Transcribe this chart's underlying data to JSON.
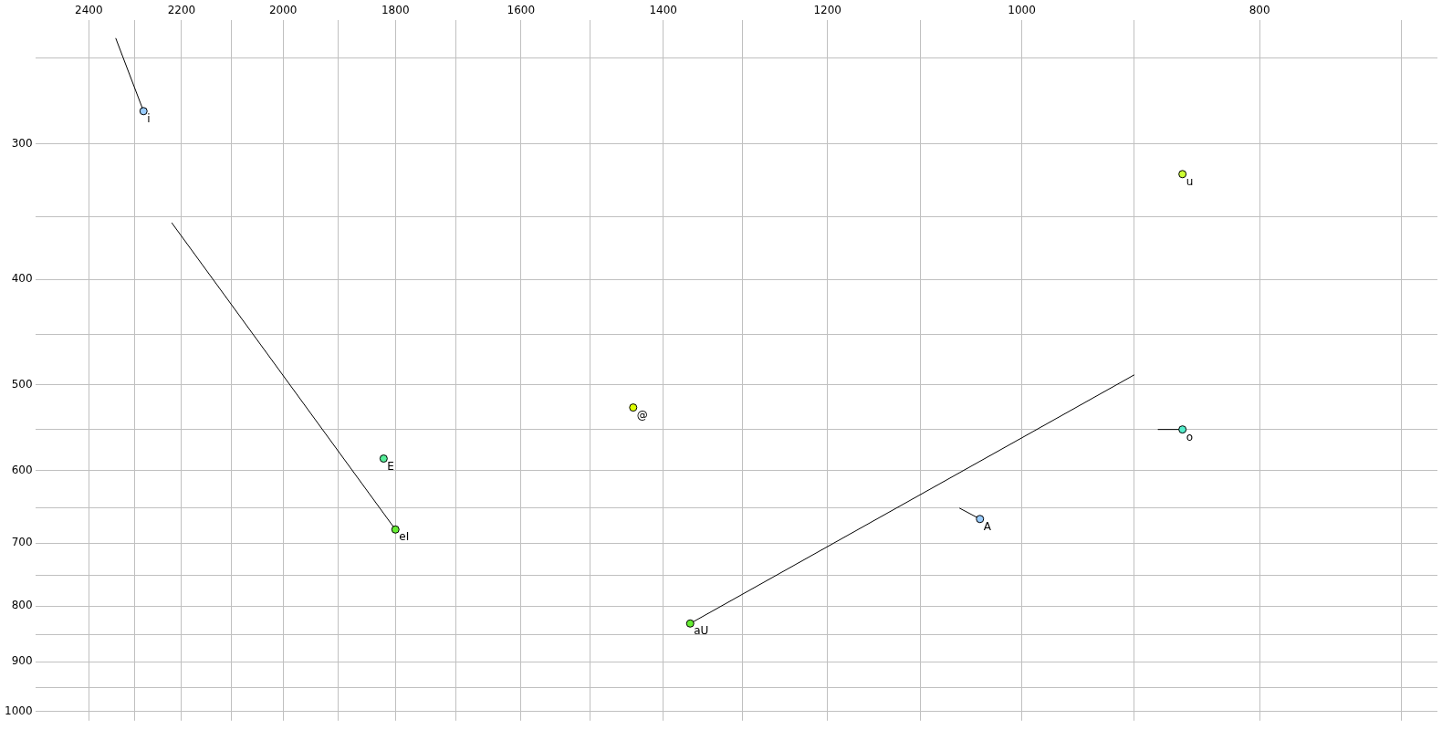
{
  "chart_data": {
    "type": "scatter",
    "log": "xy",
    "grid": true,
    "marker": "circle",
    "xlim": [
      2524,
      677
    ],
    "ylim": [
      1020,
      231
    ],
    "xticks": [
      2400,
      {
        "value": 2300,
        "label": null
      },
      2200,
      {
        "value": 2100,
        "label": null
      },
      2000,
      {
        "value": 1900,
        "label": null
      },
      1800,
      {
        "value": 1700,
        "label": null
      },
      1600,
      {
        "value": 1500,
        "label": null
      },
      1400,
      {
        "value": 1300,
        "label": null
      },
      1200,
      {
        "value": 1100,
        "label": null
      },
      1000,
      {
        "value": 900,
        "label": null
      },
      800,
      {
        "value": 700,
        "label": null
      }
    ],
    "yticks": [
      {
        "value": 250,
        "label": null
      },
      300,
      {
        "value": 350,
        "label": null
      },
      400,
      {
        "value": 450,
        "label": null
      },
      500,
      {
        "value": 550,
        "label": null
      },
      600,
      {
        "value": 650,
        "label": null
      },
      700,
      {
        "value": 750,
        "label": null
      },
      800,
      {
        "value": 850,
        "label": null
      },
      900,
      {
        "value": 950,
        "label": null
      },
      1000
    ],
    "series": [
      {
        "x": [
          2280,
          860,
          1440,
          1820,
          1800,
          860,
          1040,
          1365
        ],
        "values": [
          280,
          320,
          525,
          585,
          680,
          550,
          665,
          830
        ],
        "colors": [
          "#99ccff",
          "#ccff33",
          "#ddff00",
          "#55ee99",
          "#66ee33",
          "#55eecc",
          "#99ccff",
          "#66ee33"
        ]
      },
      {
        "type": "line",
        "marker": "none",
        "color": "#000000",
        "x": [
          2280,
          2340
        ],
        "values": [
          280,
          240
        ]
      },
      {
        "type": "line",
        "marker": "none",
        "color": "#000000",
        "x": [
          1800,
          2220
        ],
        "values": [
          680,
          355
        ]
      },
      {
        "type": "line",
        "marker": "none",
        "color": "#000000",
        "x": [
          1365,
          900
        ],
        "values": [
          830,
          490
        ]
      },
      {
        "type": "line",
        "marker": "none",
        "color": "#000000",
        "x": [
          880,
          860
        ],
        "values": [
          550,
          550
        ]
      },
      {
        "type": "line",
        "marker": "none",
        "color": "#000000",
        "x": [
          1060,
          1040
        ],
        "values": [
          650,
          665
        ]
      }
    ],
    "annotations": [
      {
        "text": "i",
        "x": 2280,
        "y": 280
      },
      {
        "text": "u",
        "x": 860,
        "y": 320
      },
      {
        "text": "@",
        "x": 1440,
        "y": 525
      },
      {
        "text": "E",
        "x": 1820,
        "y": 585
      },
      {
        "text": "eI",
        "x": 1800,
        "y": 680
      },
      {
        "text": "o",
        "x": 860,
        "y": 550
      },
      {
        "text": "A",
        "x": 1040,
        "y": 665
      },
      {
        "text": "aU",
        "x": 1365,
        "y": 830
      }
    ]
  }
}
